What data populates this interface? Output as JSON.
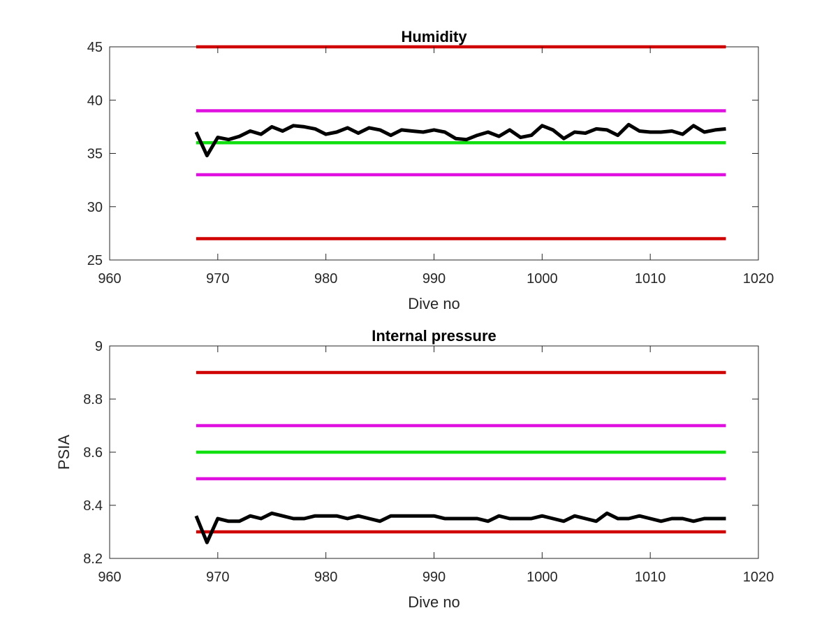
{
  "chart_data": [
    {
      "type": "line",
      "title": "Humidity",
      "xlabel": "Dive no",
      "ylabel": "",
      "xlim": [
        960,
        1020
      ],
      "ylim": [
        25,
        45
      ],
      "xticks": [
        960,
        970,
        980,
        990,
        1000,
        1010,
        1020
      ],
      "yticks": [
        25,
        30,
        35,
        40,
        45
      ],
      "grid": false,
      "x": [
        968,
        969,
        970,
        971,
        972,
        973,
        974,
        975,
        976,
        977,
        978,
        979,
        980,
        981,
        982,
        983,
        984,
        985,
        986,
        987,
        988,
        989,
        990,
        991,
        992,
        993,
        994,
        995,
        996,
        997,
        998,
        999,
        1000,
        1001,
        1002,
        1003,
        1004,
        1005,
        1006,
        1007,
        1008,
        1009,
        1010,
        1011,
        1012,
        1013,
        1014,
        1015,
        1016,
        1017
      ],
      "series": [
        {
          "color": "#000000",
          "values": [
            37.0,
            34.8,
            36.5,
            36.3,
            36.6,
            37.1,
            36.8,
            37.5,
            37.1,
            37.6,
            37.5,
            37.3,
            36.8,
            37.0,
            37.4,
            36.9,
            37.4,
            37.2,
            36.7,
            37.2,
            37.1,
            37.0,
            37.2,
            37.0,
            36.4,
            36.3,
            36.7,
            37.0,
            36.6,
            37.2,
            36.5,
            36.7,
            37.6,
            37.2,
            36.4,
            37.0,
            36.9,
            37.3,
            37.2,
            36.7,
            37.7,
            37.1,
            37.0,
            37.0,
            37.1,
            36.8,
            37.6,
            37.0,
            37.2,
            37.3
          ]
        },
        {
          "color": "#d00000",
          "x": [
            968,
            1017
          ],
          "values": [
            45,
            45
          ]
        },
        {
          "color": "#e010e0",
          "x": [
            968,
            1017
          ],
          "values": [
            39,
            39
          ]
        },
        {
          "color": "#10e010",
          "x": [
            968,
            1017
          ],
          "values": [
            36,
            36
          ]
        },
        {
          "color": "#e010e0",
          "x": [
            968,
            1017
          ],
          "values": [
            33,
            33
          ]
        },
        {
          "color": "#d00000",
          "x": [
            968,
            1017
          ],
          "values": [
            27,
            27
          ]
        }
      ]
    },
    {
      "type": "line",
      "title": "Internal pressure",
      "xlabel": "Dive no",
      "ylabel": "PSIA",
      "xlim": [
        960,
        1020
      ],
      "ylim": [
        8.2,
        9.0
      ],
      "xticks": [
        960,
        970,
        980,
        990,
        1000,
        1010,
        1020
      ],
      "yticks": [
        8.2,
        8.4,
        8.6,
        8.8,
        9
      ],
      "grid": false,
      "x": [
        968,
        969,
        970,
        971,
        972,
        973,
        974,
        975,
        976,
        977,
        978,
        979,
        980,
        981,
        982,
        983,
        984,
        985,
        986,
        987,
        988,
        989,
        990,
        991,
        992,
        993,
        994,
        995,
        996,
        997,
        998,
        999,
        1000,
        1001,
        1002,
        1003,
        1004,
        1005,
        1006,
        1007,
        1008,
        1009,
        1010,
        1011,
        1012,
        1013,
        1014,
        1015,
        1016,
        1017
      ],
      "series": [
        {
          "color": "#000000",
          "values": [
            8.36,
            8.26,
            8.35,
            8.34,
            8.34,
            8.36,
            8.35,
            8.37,
            8.36,
            8.35,
            8.35,
            8.36,
            8.36,
            8.36,
            8.35,
            8.36,
            8.35,
            8.34,
            8.36,
            8.36,
            8.36,
            8.36,
            8.36,
            8.35,
            8.35,
            8.35,
            8.35,
            8.34,
            8.36,
            8.35,
            8.35,
            8.35,
            8.36,
            8.35,
            8.34,
            8.36,
            8.35,
            8.34,
            8.37,
            8.35,
            8.35,
            8.36,
            8.35,
            8.34,
            8.35,
            8.35,
            8.34,
            8.35,
            8.35,
            8.35
          ]
        },
        {
          "color": "#d00000",
          "x": [
            968,
            1017
          ],
          "values": [
            8.9,
            8.9
          ]
        },
        {
          "color": "#e010e0",
          "x": [
            968,
            1017
          ],
          "values": [
            8.7,
            8.7
          ]
        },
        {
          "color": "#10e010",
          "x": [
            968,
            1017
          ],
          "values": [
            8.6,
            8.6
          ]
        },
        {
          "color": "#e010e0",
          "x": [
            968,
            1017
          ],
          "values": [
            8.5,
            8.5
          ]
        },
        {
          "color": "#d00000",
          "x": [
            968,
            1017
          ],
          "values": [
            8.3,
            8.3
          ]
        }
      ]
    }
  ]
}
